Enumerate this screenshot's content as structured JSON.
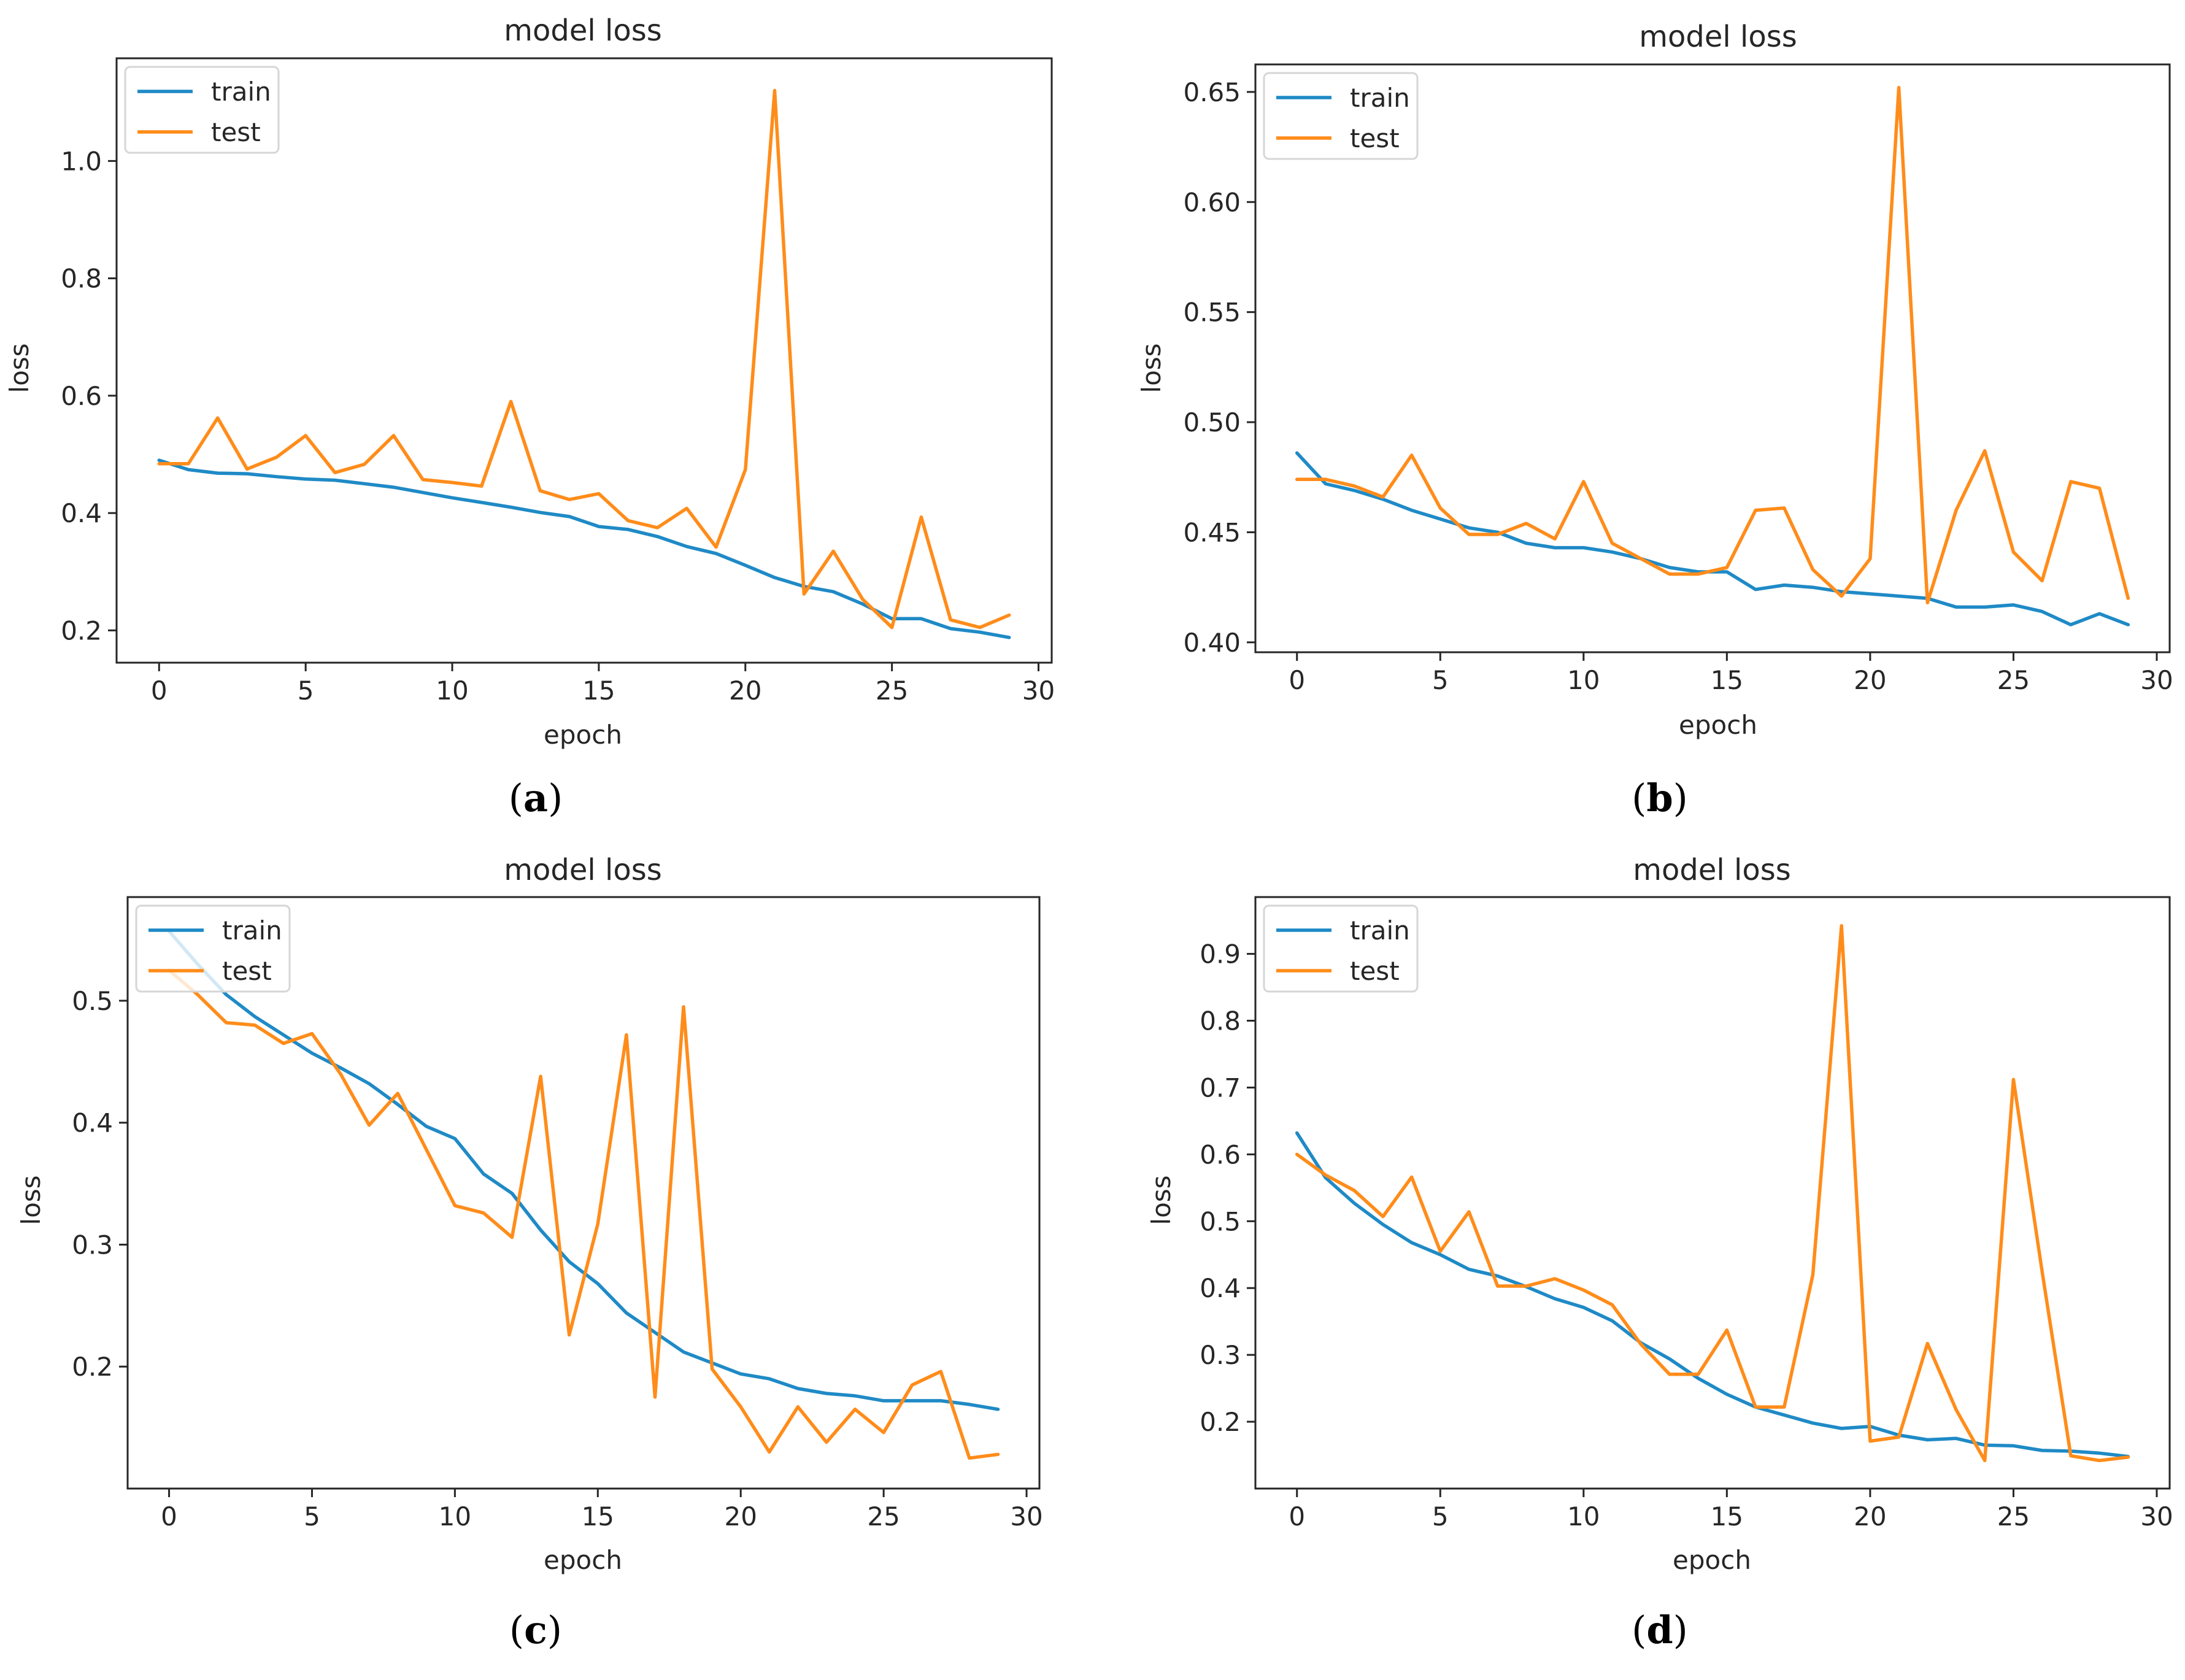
{
  "figure": {
    "captions": [
      {
        "open": "(",
        "letter": "a",
        "close": ")"
      },
      {
        "open": "(",
        "letter": "b",
        "close": ")"
      },
      {
        "open": "(",
        "letter": "c",
        "close": ")"
      },
      {
        "open": "(",
        "letter": "d",
        "close": ")"
      }
    ]
  },
  "colors": {
    "train": "#1f8ac6",
    "test": "#ff8c1a",
    "axis": "#262626",
    "legend_border": "#d6d6d6"
  },
  "chart_data": [
    {
      "type": "line",
      "panel": "a",
      "title": "model loss",
      "xlabel": "epoch",
      "ylabel": "loss",
      "xlim": [
        -1.45,
        30.45
      ],
      "ylim": [
        0.145,
        1.175
      ],
      "xticks": [
        0,
        5,
        10,
        15,
        20,
        25,
        30
      ],
      "yticks": [
        0.2,
        0.4,
        0.6,
        0.8,
        1.0
      ],
      "ytick_labels": [
        "0.2",
        "0.4",
        "0.6",
        "0.8",
        "1.0"
      ],
      "legend_position": "upper-left",
      "x": [
        0,
        1,
        2,
        3,
        4,
        5,
        6,
        7,
        8,
        9,
        10,
        11,
        12,
        13,
        14,
        15,
        16,
        17,
        18,
        19,
        20,
        21,
        22,
        23,
        24,
        25,
        26,
        27,
        28,
        29
      ],
      "series": [
        {
          "name": "train",
          "values": [
            0.49,
            0.474,
            0.468,
            0.467,
            0.462,
            0.458,
            0.456,
            0.45,
            0.444,
            0.435,
            0.426,
            0.418,
            0.41,
            0.401,
            0.394,
            0.377,
            0.372,
            0.36,
            0.343,
            0.331,
            0.311,
            0.29,
            0.275,
            0.266,
            0.245,
            0.22,
            0.22,
            0.203,
            0.197,
            0.188
          ]
        },
        {
          "name": "test",
          "values": [
            0.484,
            0.484,
            0.562,
            0.475,
            0.495,
            0.532,
            0.469,
            0.483,
            0.532,
            0.457,
            0.452,
            0.446,
            0.59,
            0.438,
            0.423,
            0.433,
            0.387,
            0.375,
            0.408,
            0.342,
            0.474,
            1.12,
            0.262,
            0.335,
            0.253,
            0.205,
            0.393,
            0.218,
            0.205,
            0.226
          ]
        }
      ]
    },
    {
      "type": "line",
      "panel": "b",
      "title": "model loss",
      "xlabel": "epoch",
      "ylabel": "loss",
      "xlim": [
        -1.45,
        30.45
      ],
      "ylim": [
        0.3955,
        0.6625
      ],
      "xticks": [
        0,
        5,
        10,
        15,
        20,
        25,
        30
      ],
      "yticks": [
        0.4,
        0.45,
        0.5,
        0.55,
        0.6,
        0.65
      ],
      "ytick_labels": [
        "0.40",
        "0.45",
        "0.50",
        "0.55",
        "0.60",
        "0.65"
      ],
      "legend_position": "upper-left",
      "x": [
        0,
        1,
        2,
        3,
        4,
        5,
        6,
        7,
        8,
        9,
        10,
        11,
        12,
        13,
        14,
        15,
        16,
        17,
        18,
        19,
        20,
        21,
        22,
        23,
        24,
        25,
        26,
        27,
        28,
        29
      ],
      "series": [
        {
          "name": "train",
          "values": [
            0.486,
            0.472,
            0.469,
            0.465,
            0.46,
            0.456,
            0.452,
            0.45,
            0.445,
            0.443,
            0.443,
            0.441,
            0.438,
            0.434,
            0.432,
            0.432,
            0.424,
            0.426,
            0.425,
            0.423,
            0.422,
            0.421,
            0.42,
            0.416,
            0.416,
            0.417,
            0.414,
            0.408,
            0.413,
            0.408
          ]
        },
        {
          "name": "test",
          "values": [
            0.474,
            0.474,
            0.471,
            0.466,
            0.485,
            0.461,
            0.449,
            0.449,
            0.454,
            0.447,
            0.473,
            0.445,
            0.438,
            0.431,
            0.431,
            0.434,
            0.46,
            0.461,
            0.433,
            0.421,
            0.438,
            0.652,
            0.418,
            0.46,
            0.487,
            0.441,
            0.428,
            0.473,
            0.47,
            0.42
          ]
        }
      ]
    },
    {
      "type": "line",
      "panel": "c",
      "title": "model loss",
      "xlabel": "epoch",
      "ylabel": "loss",
      "xlim": [
        -1.45,
        30.45
      ],
      "ylim": [
        0.1,
        0.585
      ],
      "xticks": [
        0,
        5,
        10,
        15,
        20,
        25,
        30
      ],
      "yticks": [
        0.2,
        0.3,
        0.4,
        0.5
      ],
      "ytick_labels": [
        "0.2",
        "0.3",
        "0.4",
        "0.5"
      ],
      "legend_position": "upper-left",
      "x": [
        0,
        1,
        2,
        3,
        4,
        5,
        6,
        7,
        8,
        9,
        10,
        11,
        12,
        13,
        14,
        15,
        16,
        17,
        18,
        19,
        20,
        21,
        22,
        23,
        24,
        25,
        26,
        27,
        28,
        29
      ],
      "series": [
        {
          "name": "train",
          "values": [
            0.557,
            0.53,
            0.505,
            0.487,
            0.472,
            0.457,
            0.445,
            0.432,
            0.415,
            0.397,
            0.387,
            0.358,
            0.342,
            0.312,
            0.286,
            0.268,
            0.244,
            0.228,
            0.212,
            0.203,
            0.194,
            0.19,
            0.182,
            0.178,
            0.176,
            0.172,
            0.172,
            0.172,
            0.169,
            0.165
          ]
        },
        {
          "name": "test",
          "values": [
            0.525,
            0.505,
            0.482,
            0.48,
            0.465,
            0.473,
            0.44,
            0.398,
            0.424,
            0.378,
            0.332,
            0.326,
            0.306,
            0.438,
            0.226,
            0.317,
            0.472,
            0.175,
            0.495,
            0.198,
            0.167,
            0.13,
            0.167,
            0.138,
            0.165,
            0.146,
            0.185,
            0.196,
            0.125,
            0.128
          ]
        }
      ]
    },
    {
      "type": "line",
      "panel": "d",
      "title": "model loss",
      "xlabel": "epoch",
      "ylabel": "loss",
      "xlim": [
        -1.45,
        30.45
      ],
      "ylim": [
        0.1,
        0.985
      ],
      "xticks": [
        0,
        5,
        10,
        15,
        20,
        25,
        30
      ],
      "yticks": [
        0.2,
        0.3,
        0.4,
        0.5,
        0.6,
        0.7,
        0.8,
        0.9
      ],
      "ytick_labels": [
        "0.2",
        "0.3",
        "0.4",
        "0.5",
        "0.6",
        "0.7",
        "0.8",
        "0.9"
      ],
      "legend_position": "upper-left",
      "x": [
        0,
        1,
        2,
        3,
        4,
        5,
        6,
        7,
        8,
        9,
        10,
        11,
        12,
        13,
        14,
        15,
        16,
        17,
        18,
        19,
        20,
        21,
        22,
        23,
        24,
        25,
        26,
        27,
        28,
        29
      ],
      "series": [
        {
          "name": "train",
          "values": [
            0.632,
            0.565,
            0.527,
            0.495,
            0.468,
            0.45,
            0.428,
            0.418,
            0.402,
            0.384,
            0.371,
            0.351,
            0.318,
            0.294,
            0.265,
            0.241,
            0.222,
            0.21,
            0.198,
            0.19,
            0.193,
            0.18,
            0.173,
            0.175,
            0.165,
            0.164,
            0.157,
            0.156,
            0.153,
            0.148
          ]
        },
        {
          "name": "test",
          "values": [
            0.6,
            0.569,
            0.546,
            0.507,
            0.566,
            0.455,
            0.514,
            0.403,
            0.403,
            0.414,
            0.397,
            0.375,
            0.316,
            0.271,
            0.271,
            0.337,
            0.222,
            0.222,
            0.42,
            0.942,
            0.171,
            0.177,
            0.317,
            0.218,
            0.142,
            0.712,
            0.425,
            0.149,
            0.142,
            0.147
          ]
        }
      ]
    }
  ]
}
